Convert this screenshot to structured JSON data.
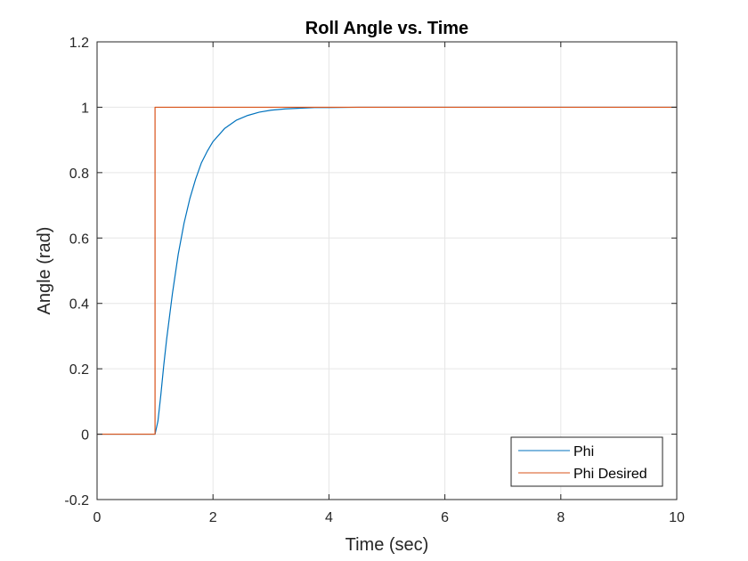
{
  "chart_data": {
    "type": "line",
    "title": "Roll Angle vs. Time",
    "xlabel": "Time (sec)",
    "ylabel": "Angle (rad)",
    "xlim": [
      0,
      10
    ],
    "ylim": [
      -0.2,
      1.2
    ],
    "xticks": [
      0,
      2,
      4,
      6,
      8,
      10
    ],
    "yticks": [
      -0.2,
      0,
      0.2,
      0.4,
      0.6,
      0.8,
      1,
      1.2
    ],
    "xtick_labels": [
      "0",
      "2",
      "4",
      "6",
      "8",
      "10"
    ],
    "ytick_labels": [
      "-0.2",
      "0",
      "0.2",
      "0.4",
      "0.6",
      "0.8",
      "1",
      "1.2"
    ],
    "grid": true,
    "legend_position": "bottom-right",
    "series": [
      {
        "name": "Phi",
        "color": "#0072BD",
        "x": [
          0,
          1.0,
          1.05,
          1.1,
          1.15,
          1.2,
          1.3,
          1.4,
          1.5,
          1.6,
          1.7,
          1.8,
          1.9,
          2.0,
          2.2,
          2.4,
          2.6,
          2.8,
          3.0,
          3.25,
          3.5,
          3.75,
          4.0,
          4.5,
          5.0,
          6.0,
          7.0,
          8.0,
          9.0,
          10.0
        ],
        "y": [
          0,
          0,
          0.04,
          0.12,
          0.21,
          0.29,
          0.43,
          0.55,
          0.645,
          0.72,
          0.78,
          0.83,
          0.865,
          0.895,
          0.935,
          0.96,
          0.975,
          0.985,
          0.991,
          0.995,
          0.997,
          0.999,
          0.999,
          1.0,
          1.0,
          1.0,
          1.0,
          1.0,
          1.0,
          1.0
        ]
      },
      {
        "name": "Phi Desired",
        "color": "#D95319",
        "x": [
          0,
          1.0,
          1.0,
          10.0
        ],
        "y": [
          0,
          0,
          1.0,
          1.0
        ]
      }
    ]
  }
}
